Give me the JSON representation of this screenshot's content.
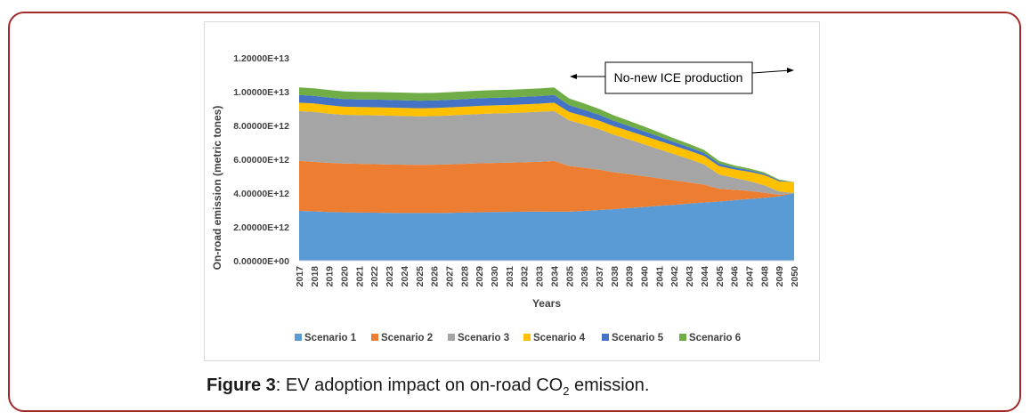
{
  "chart_data": {
    "type": "area",
    "stacked": true,
    "title": "",
    "xlabel": "Years",
    "ylabel": "On-road emission (metric tones)",
    "ylim": [
      0,
      12000000000000
    ],
    "ytick_labels": [
      "0.00000E+00",
      "2.00000E+12",
      "4.00000E+12",
      "6.00000E+12",
      "8.00000E+12",
      "1.00000E+13",
      "1.20000E+13"
    ],
    "categories": [
      "2017",
      "2018",
      "2019",
      "2020",
      "2021",
      "2022",
      "2023",
      "2024",
      "2025",
      "2026",
      "2027",
      "2028",
      "2029",
      "2030",
      "2031",
      "2032",
      "2033",
      "2034",
      "2035",
      "2036",
      "2037",
      "2038",
      "2039",
      "2040",
      "2041",
      "2042",
      "2043",
      "2044",
      "2045",
      "2046",
      "2047",
      "2048",
      "2049",
      "2050"
    ],
    "series": [
      {
        "name": "Scenario 1",
        "color": "#5b9bd5",
        "values": [
          2950000000000.0,
          2920000000000.0,
          2880000000000.0,
          2860000000000.0,
          2850000000000.0,
          2840000000000.0,
          2830000000000.0,
          2820000000000.0,
          2820000000000.0,
          2820000000000.0,
          2830000000000.0,
          2850000000000.0,
          2870000000000.0,
          2880000000000.0,
          2890000000000.0,
          2900000000000.0,
          2910000000000.0,
          2900000000000.0,
          2900000000000.0,
          2950000000000.0,
          3000000000000.0,
          3050000000000.0,
          3120000000000.0,
          3180000000000.0,
          3250000000000.0,
          3300000000000.0,
          3380000000000.0,
          3450000000000.0,
          3500000000000.0,
          3580000000000.0,
          3650000000000.0,
          3720000000000.0,
          3800000000000.0,
          4000000000000.0
        ]
      },
      {
        "name": "Scenario 2",
        "color": "#ed7d31",
        "values": [
          2950000000000.0,
          2930000000000.0,
          2910000000000.0,
          2890000000000.0,
          2880000000000.0,
          2870000000000.0,
          2860000000000.0,
          2860000000000.0,
          2850000000000.0,
          2860000000000.0,
          2870000000000.0,
          2880000000000.0,
          2890000000000.0,
          2900000000000.0,
          2910000000000.0,
          2920000000000.0,
          2940000000000.0,
          3000000000000.0,
          2700000000000.0,
          2550000000000.0,
          2380000000000.0,
          2180000000000.0,
          2000000000000.0,
          1820000000000.0,
          1620000000000.0,
          1450000000000.0,
          1250000000000.0,
          1050000000000.0,
          750000000000.0,
          620000000000.0,
          480000000000.0,
          300000000000.0,
          100000000000.0,
          0.0
        ]
      },
      {
        "name": "Scenario 3",
        "color": "#a5a5a5",
        "values": [
          2950000000000.0,
          2950000000000.0,
          2910000000000.0,
          2880000000000.0,
          2880000000000.0,
          2890000000000.0,
          2890000000000.0,
          2880000000000.0,
          2870000000000.0,
          2870000000000.0,
          2890000000000.0,
          2900000000000.0,
          2920000000000.0,
          2930000000000.0,
          2930000000000.0,
          2950000000000.0,
          2960000000000.0,
          2950000000000.0,
          2700000000000.0,
          2550000000000.0,
          2400000000000.0,
          2220000000000.0,
          2050000000000.0,
          1880000000000.0,
          1720000000000.0,
          1550000000000.0,
          1380000000000.0,
          1200000000000.0,
          850000000000.0,
          700000000000.0,
          580000000000.0,
          450000000000.0,
          200000000000.0,
          0.0
        ]
      },
      {
        "name": "Scenario 4",
        "color": "#ffc000",
        "values": [
          500000000000.0,
          500000000000.0,
          500000000000.0,
          480000000000.0,
          480000000000.0,
          480000000000.0,
          480000000000.0,
          480000000000.0,
          480000000000.0,
          480000000000.0,
          480000000000.0,
          480000000000.0,
          480000000000.0,
          480000000000.0,
          480000000000.0,
          480000000000.0,
          480000000000.0,
          500000000000.0,
          500000000000.0,
          500000000000.0,
          500000000000.0,
          500000000000.0,
          500000000000.0,
          500000000000.0,
          500000000000.0,
          500000000000.0,
          500000000000.0,
          500000000000.0,
          500000000000.0,
          500000000000.0,
          550000000000.0,
          600000000000.0,
          600000000000.0,
          650000000000.0
        ]
      },
      {
        "name": "Scenario 5",
        "color": "#4472c4",
        "values": [
          450000000000.0,
          450000000000.0,
          450000000000.0,
          450000000000.0,
          450000000000.0,
          450000000000.0,
          450000000000.0,
          450000000000.0,
          450000000000.0,
          450000000000.0,
          450000000000.0,
          450000000000.0,
          450000000000.0,
          450000000000.0,
          450000000000.0,
          450000000000.0,
          450000000000.0,
          450000000000.0,
          400000000000.0,
          380000000000.0,
          350000000000.0,
          320000000000.0,
          300000000000.0,
          280000000000.0,
          250000000000.0,
          220000000000.0,
          200000000000.0,
          180000000000.0,
          150000000000.0,
          120000000000.0,
          100000000000.0,
          80000000000.0,
          50000000000.0,
          0.0
        ]
      },
      {
        "name": "Scenario 6",
        "color": "#70ad47",
        "values": [
          450000000000.0,
          450000000000.0,
          450000000000.0,
          450000000000.0,
          450000000000.0,
          450000000000.0,
          450000000000.0,
          450000000000.0,
          450000000000.0,
          450000000000.0,
          450000000000.0,
          450000000000.0,
          450000000000.0,
          450000000000.0,
          450000000000.0,
          450000000000.0,
          450000000000.0,
          450000000000.0,
          400000000000.0,
          370000000000.0,
          350000000000.0,
          320000000000.0,
          300000000000.0,
          280000000000.0,
          250000000000.0,
          220000000000.0,
          200000000000.0,
          170000000000.0,
          150000000000.0,
          120000000000.0,
          100000000000.0,
          80000000000.0,
          50000000000.0,
          0.0
        ]
      }
    ],
    "annotation": "No-new ICE production",
    "legend_position": "bottom",
    "grid": false
  },
  "caption": {
    "label": "Figure 3",
    "text_before": ": EV adoption impact on on-road CO",
    "subscript": "2",
    "text_after": " emission."
  }
}
